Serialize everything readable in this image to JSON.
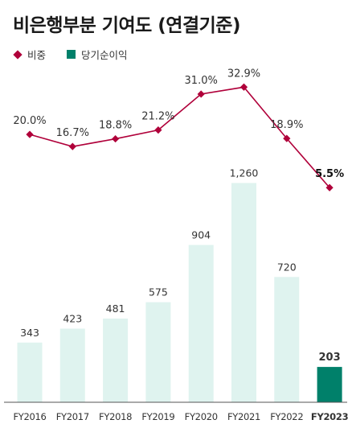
{
  "title": "비은행부분 기여도 (연결기준)",
  "legend": {
    "line_label": "비중",
    "bar_label": "당기순이익",
    "line_color": "#b0003a",
    "bar_color": "#dff3ef",
    "highlight_bar_color": "#00806a"
  },
  "chart_data": {
    "type": "bar",
    "title": "비은행부분 기여도 (연결기준)",
    "categories": [
      "FY2016",
      "FY2017",
      "FY2018",
      "FY2019",
      "FY2020",
      "FY2021",
      "FY2022",
      "FY2023"
    ],
    "series": [
      {
        "name": "당기순이익",
        "type": "bar",
        "values": [
          343,
          423,
          481,
          575,
          904,
          1260,
          720,
          203
        ],
        "labels": [
          "343",
          "423",
          "481",
          "575",
          "904",
          "1,260",
          "720",
          "203"
        ]
      },
      {
        "name": "비중",
        "type": "line",
        "values": [
          20.0,
          16.7,
          18.8,
          21.2,
          31.0,
          32.9,
          18.9,
          5.5
        ],
        "labels": [
          "20.0%",
          "16.7%",
          "18.8%",
          "21.2%",
          "31.0%",
          "32.9%",
          "18.9%",
          "5.5%"
        ]
      }
    ],
    "highlight_category": "FY2023",
    "grid": false
  }
}
